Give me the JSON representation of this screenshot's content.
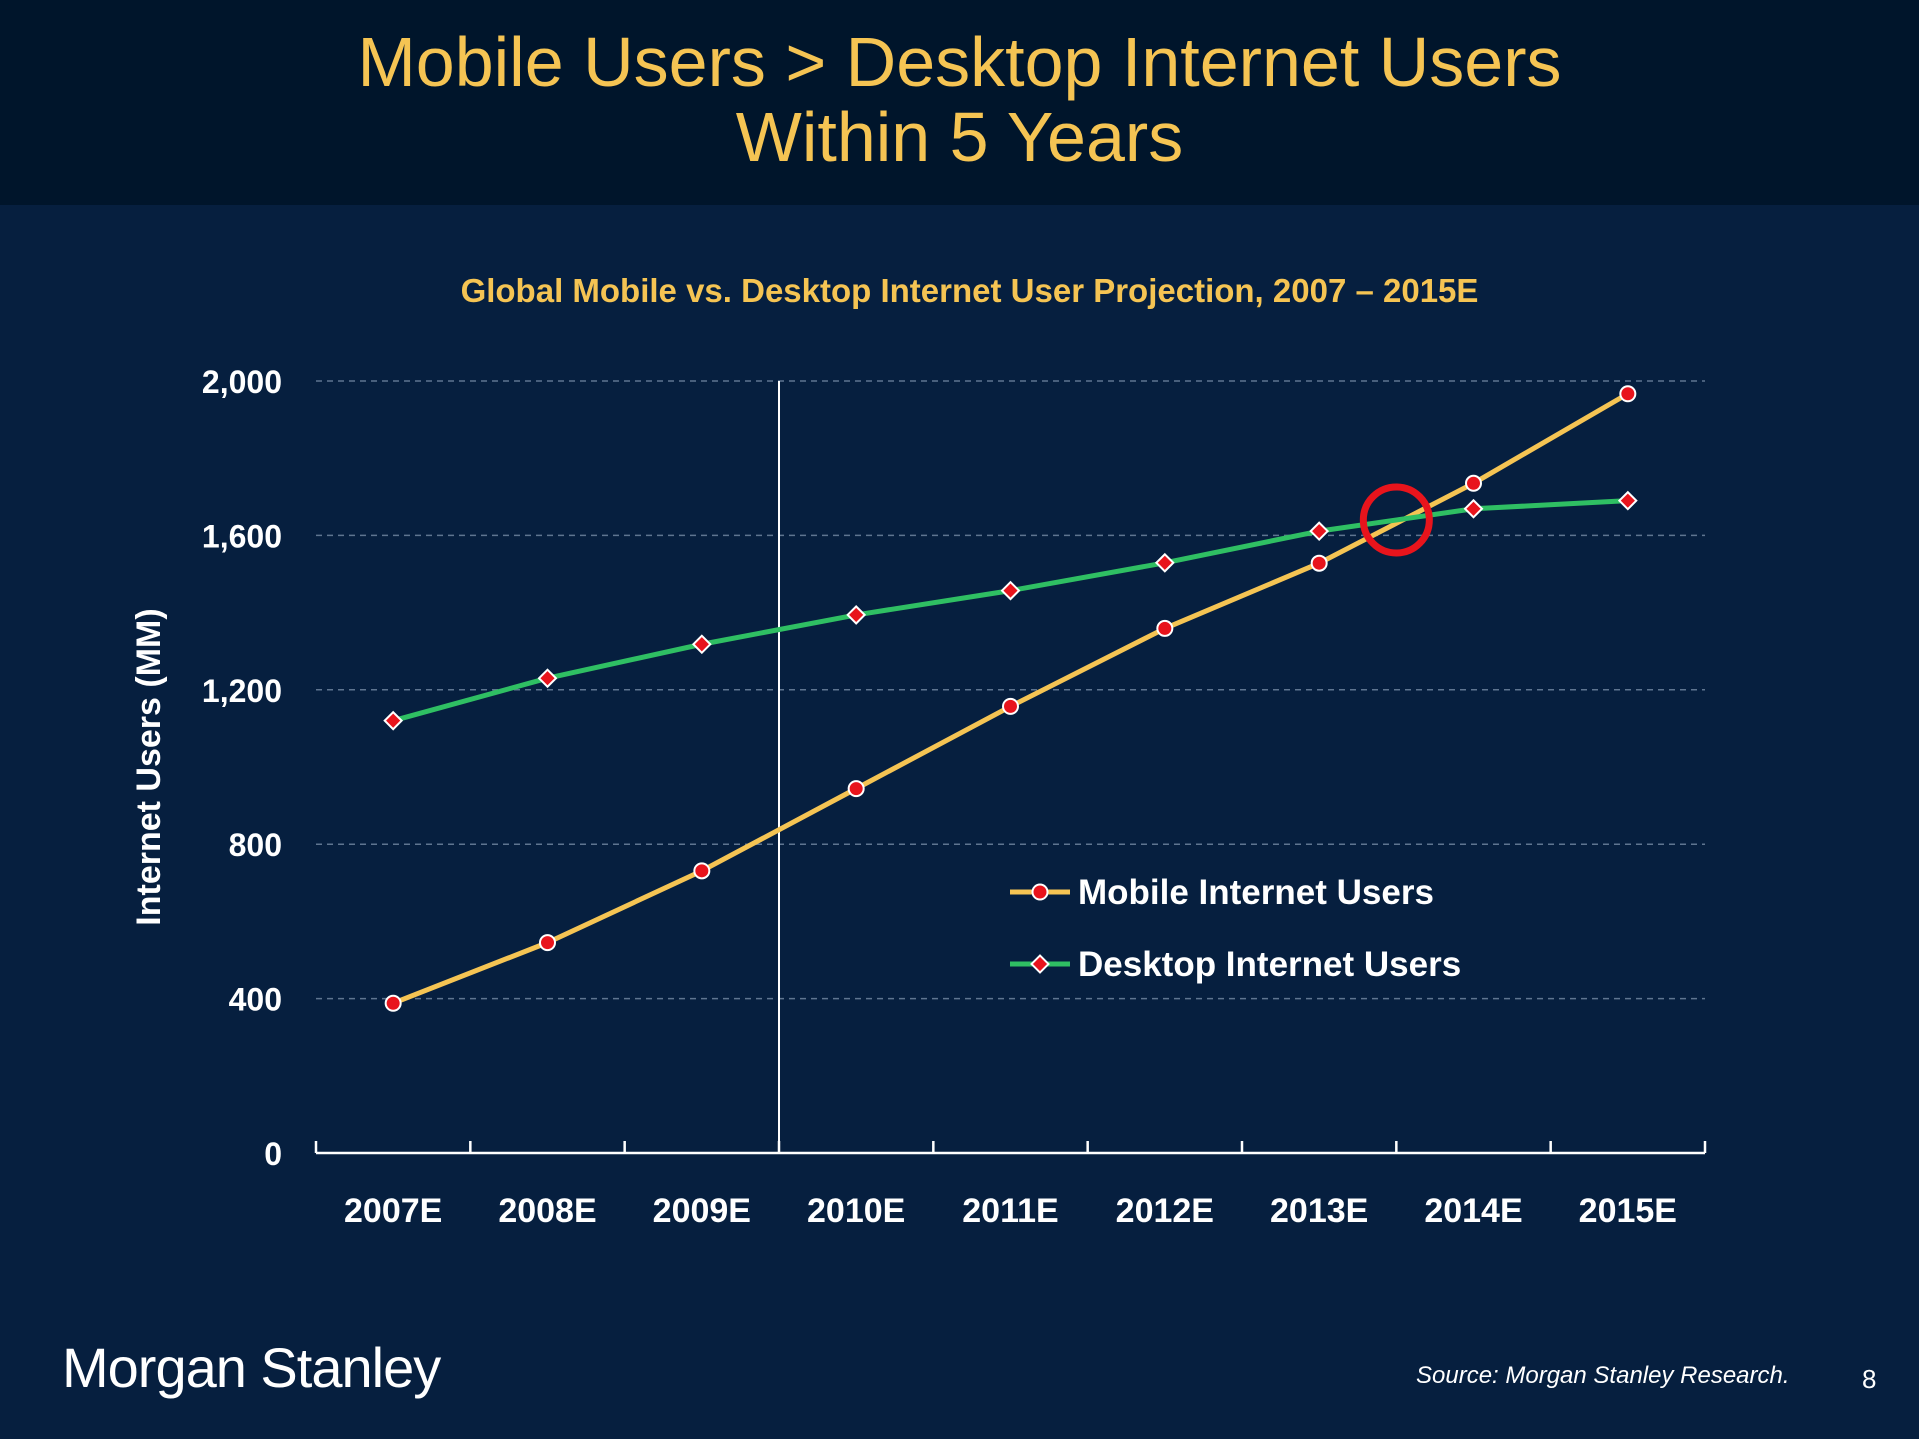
{
  "slide": {
    "title_line1": "Mobile Users > Desktop Internet Users",
    "title_line2": "Within 5 Years",
    "brand": "Morgan Stanley",
    "source": "Source: Morgan Stanley Research.",
    "page_number": "8"
  },
  "colors": {
    "background": "#061f3f",
    "header_background": "#00152b",
    "title": "#f5c453",
    "mobile_line": "#f5c453",
    "desktop_line": "#2fbf63",
    "marker": "#e8141c",
    "highlight_circle": "#e8141c"
  },
  "chart_data": {
    "type": "line",
    "title": "Global Mobile vs. Desktop Internet User Projection, 2007 – 2015E",
    "xlabel": "",
    "ylabel": "Internet Users (MM)",
    "ylim": [
      0,
      2000
    ],
    "yticks": [
      0,
      400,
      800,
      1200,
      1600,
      2000
    ],
    "ytick_labels": [
      "0",
      "400",
      "800",
      "1,200",
      "1,600",
      "2,000"
    ],
    "categories": [
      "2007E",
      "2008E",
      "2009E",
      "2010E",
      "2011E",
      "2012E",
      "2013E",
      "2014E",
      "2015E"
    ],
    "series": [
      {
        "name": "Mobile Internet Users",
        "marker": "circle",
        "values": [
          388,
          545,
          731,
          944,
          1157,
          1359,
          1528,
          1735,
          1967
        ]
      },
      {
        "name": "Desktop Internet Users",
        "marker": "diamond",
        "values": [
          1120,
          1230,
          1318,
          1394,
          1457,
          1529,
          1611,
          1669,
          1690
        ]
      }
    ],
    "grid": "horizontal-dashed",
    "divider_after_category": "2009E",
    "highlight": {
      "label": "crossover",
      "between": [
        "2013E",
        "2014E"
      ],
      "y": 1640
    },
    "legend_position": "center-right"
  }
}
